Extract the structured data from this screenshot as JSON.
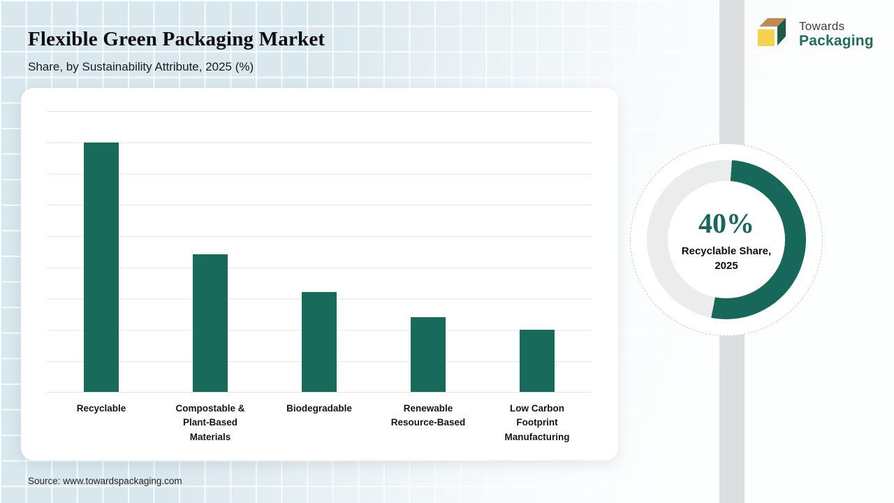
{
  "header": {
    "title": "Flexible Green Packaging Market",
    "subtitle": "Share, by Sustainability Attribute, 2025 (%)"
  },
  "logo": {
    "name_top": "Towards",
    "name_bottom": "Packaging",
    "icon": "box-cube-icon",
    "colors": {
      "top_face": "#c18a52",
      "front_face": "#f7d34d",
      "side_face": "#1e5b4b",
      "wordmark_green": "#1f6e5a"
    }
  },
  "chart_data": {
    "type": "bar",
    "title": "Flexible Green Packaging Market Share, by Sustainability Attribute, 2025 (%)",
    "categories": [
      "Recyclable",
      "Compostable & Plant-Based Materials",
      "Biodegradable",
      "Renewable Resource-Based",
      "Low Carbon Footprint Manufacturing"
    ],
    "values": [
      40,
      22,
      16,
      12,
      10
    ],
    "unit": "%",
    "xlabel": "",
    "ylabel": "",
    "ylim": [
      0,
      45
    ],
    "gridline_step": 5,
    "grid": true,
    "y_tick_labels_shown": false,
    "bar_color": "#186a5b",
    "legend": "none"
  },
  "donut": {
    "type": "donut-gauge",
    "value_label": "40%",
    "caption": "Recyclable Share, 2025",
    "percent": 40,
    "arc_color": "#17685a",
    "track_color": "#ebecec"
  },
  "source": {
    "text": "Source: www.towardspackaging.com"
  },
  "colors": {
    "accent_green": "#186a5b",
    "band_gray": "#dcdee0",
    "card_bg": "#ffffff",
    "page_bg": "#d9e7ee"
  }
}
